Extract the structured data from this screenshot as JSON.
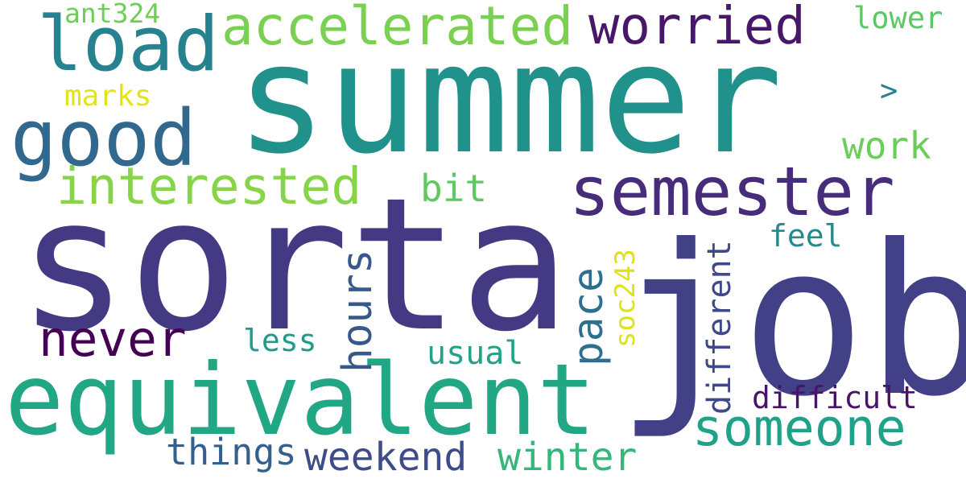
{
  "words": [
    {
      "text": "summer",
      "color": "#21918c"
    },
    {
      "text": "sorta",
      "color": "#443a83"
    },
    {
      "text": "job",
      "color": "#424086"
    },
    {
      "text": "equivalent",
      "color": "#22a785"
    },
    {
      "text": "semester",
      "color": "#472c7a"
    },
    {
      "text": "good",
      "color": "#31688e"
    },
    {
      "text": "load",
      "color": "#26828e"
    },
    {
      "text": "accelerated",
      "color": "#7ad151"
    },
    {
      "text": "worried",
      "color": "#481769"
    },
    {
      "text": "interested",
      "color": "#86d549"
    },
    {
      "text": "someone",
      "color": "#1fa287"
    },
    {
      "text": "never",
      "color": "#440154"
    },
    {
      "text": "weekend",
      "color": "#3e4c8a"
    },
    {
      "text": "winter",
      "color": "#35b779"
    },
    {
      "text": "things",
      "color": "#355f8d"
    },
    {
      "text": "hours",
      "color": "#38588c"
    },
    {
      "text": "pace",
      "color": "#2d708e"
    },
    {
      "text": "different",
      "color": "#3f4889"
    },
    {
      "text": "soc243",
      "color": "#dde318"
    },
    {
      "text": "work",
      "color": "#6ccd5a"
    },
    {
      "text": "bit",
      "color": "#5ec962"
    },
    {
      "text": "feel",
      "color": "#228c8d"
    },
    {
      "text": "difficult",
      "color": "#481467"
    },
    {
      "text": "usual",
      "color": "#20a386"
    },
    {
      "text": "less",
      "color": "#1e9c89"
    },
    {
      "text": "marks",
      "color": "#e2e418"
    },
    {
      "text": "ant324",
      "color": "#6ece58"
    },
    {
      "text": "lower",
      "color": "#5ac864"
    },
    {
      "text": ">",
      "color": "#27808e"
    }
  ]
}
